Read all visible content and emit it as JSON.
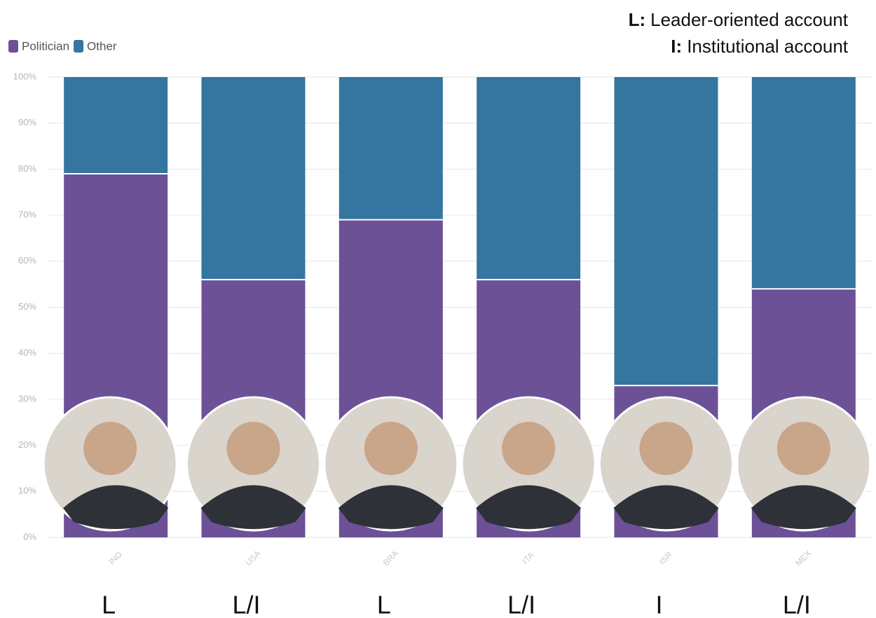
{
  "chart_data": {
    "type": "stacked_bar",
    "categories": [
      "IND",
      "USA",
      "BRA",
      "ITA",
      "ISR",
      "MEX"
    ],
    "series": [
      {
        "name": "Politician",
        "color": "#6c5197",
        "values": [
          79,
          56,
          69,
          56,
          33,
          54
        ]
      },
      {
        "name": "Other",
        "color": "#34769f",
        "values": [
          21,
          44,
          31,
          44,
          67,
          46
        ]
      }
    ],
    "ylim": [
      0,
      100
    ],
    "yticks": [
      {
        "value": 0,
        "label": "0%"
      },
      {
        "value": 10,
        "label": "10%"
      },
      {
        "value": 20,
        "label": "20%"
      },
      {
        "value": 30,
        "label": "30%"
      },
      {
        "value": 40,
        "label": "40%"
      },
      {
        "value": 50,
        "label": "50%"
      },
      {
        "value": 60,
        "label": "60%"
      },
      {
        "value": 70,
        "label": "70%"
      },
      {
        "value": 80,
        "label": "80%"
      },
      {
        "value": 90,
        "label": "90%"
      },
      {
        "value": 100,
        "label": "100%"
      }
    ],
    "grid": true,
    "account_types": [
      "L",
      "L/I",
      "L",
      "L/I",
      "I",
      "L/I"
    ],
    "annotations": [
      {
        "key": "L:",
        "text": "Leader-oriented account"
      },
      {
        "key": "I:",
        "text": "Institutional account"
      }
    ]
  }
}
